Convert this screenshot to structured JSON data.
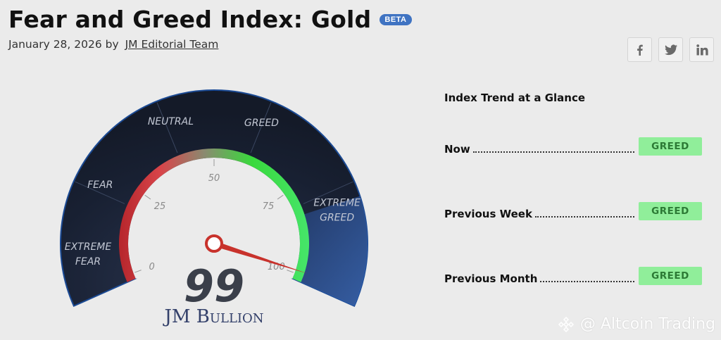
{
  "header": {
    "title": "Fear and Greed Index: Gold",
    "badge": "BETA",
    "date": "January 28, 2026",
    "by": "by",
    "author": "JM Editorial Team"
  },
  "social": [
    {
      "name": "facebook-icon",
      "glyph": "f"
    },
    {
      "name": "twitter-icon",
      "glyph": "t"
    },
    {
      "name": "linkedin-icon",
      "glyph": "in"
    }
  ],
  "gauge": {
    "value": 99,
    "score_text": "99",
    "brand": "JM Bullion",
    "zones": [
      "EXTREME FEAR",
      "FEAR",
      "NEUTRAL",
      "GREED",
      "EXTREME GREED"
    ],
    "ticks": [
      "0",
      "25",
      "50",
      "75",
      "100"
    ],
    "min": 0,
    "max": 100
  },
  "trend": {
    "title": "Index Trend at a Glance",
    "rows": [
      {
        "label": "Now",
        "status": "GREED"
      },
      {
        "label": "Previous Week",
        "status": "GREED"
      },
      {
        "label": "Previous Month",
        "status": "GREED"
      }
    ]
  },
  "watermark": "@ Altcoin Trading",
  "colors": {
    "badge_bg": "#90ee9a",
    "badge_text": "#2c7a35",
    "beta": "#3f73c2",
    "gauge_bg": "#1c2436",
    "needle": "#c8322c"
  }
}
